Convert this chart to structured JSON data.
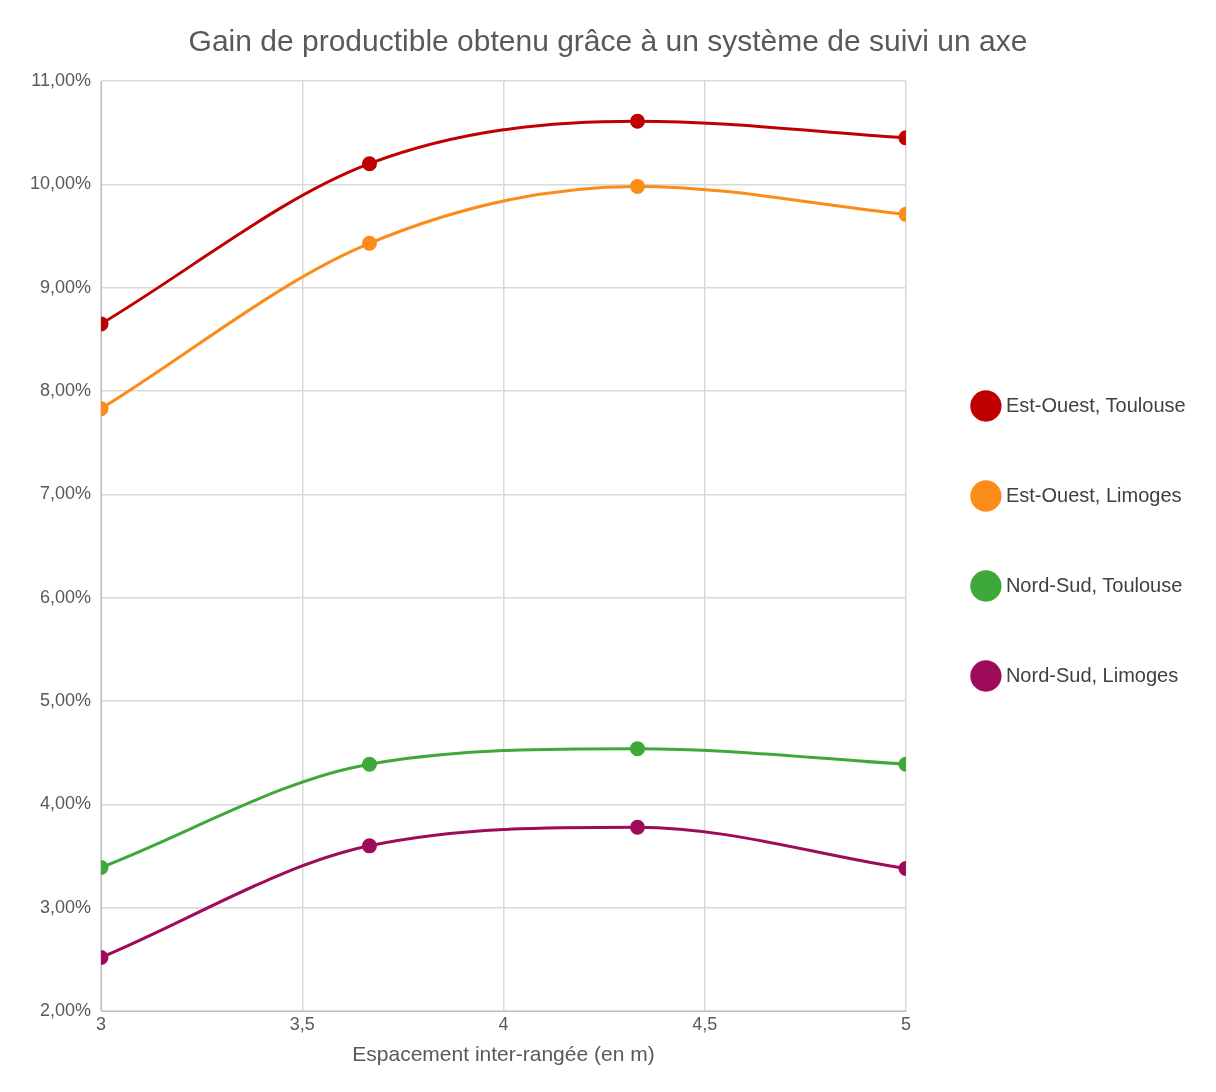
{
  "chart_data": {
    "type": "line",
    "title": "Gain de productible obtenu grâce à un système de suivi un axe",
    "xlabel": "Espacement inter-rangée (en m)",
    "x": [
      3,
      3.667,
      4.333,
      5
    ],
    "series": [
      {
        "name": "Est-Ouest, Toulouse",
        "color": "#c00000",
        "values": [
          8.65,
          10.2,
          10.61,
          10.45
        ]
      },
      {
        "name": "Est-Ouest, Limoges",
        "color": "#fb8c1a",
        "values": [
          7.83,
          9.43,
          9.98,
          9.71
        ]
      },
      {
        "name": "Nord-Sud, Toulouse",
        "color": "#3fa83a",
        "values": [
          3.39,
          4.39,
          4.54,
          4.39
        ]
      },
      {
        "name": "Nord-Sud, Limoges",
        "color": "#9e0b5a",
        "values": [
          2.52,
          3.6,
          3.78,
          3.38
        ]
      }
    ],
    "xlim": [
      3,
      5
    ],
    "xticks": [
      3,
      {
        "value": 3.5,
        "label": "3,5"
      },
      4,
      {
        "value": 4.5,
        "label": "4,5"
      },
      5
    ],
    "ylim": [
      2,
      11
    ],
    "yticks": [
      {
        "value": 2,
        "label": "2,00%"
      },
      {
        "value": 3,
        "label": "3,00%"
      },
      {
        "value": 4,
        "label": "4,00%"
      },
      {
        "value": 5,
        "label": "5,00%"
      },
      {
        "value": 6,
        "label": "6,00%"
      },
      {
        "value": 7,
        "label": "7,00%"
      },
      {
        "value": 8,
        "label": "8,00%"
      },
      {
        "value": 9,
        "label": "9,00%"
      },
      {
        "value": 10,
        "label": "10,00%"
      },
      {
        "value": 11,
        "label": "11,00%"
      }
    ],
    "grid": true,
    "legend": "right",
    "marker": "circle",
    "line_style": "solid"
  }
}
